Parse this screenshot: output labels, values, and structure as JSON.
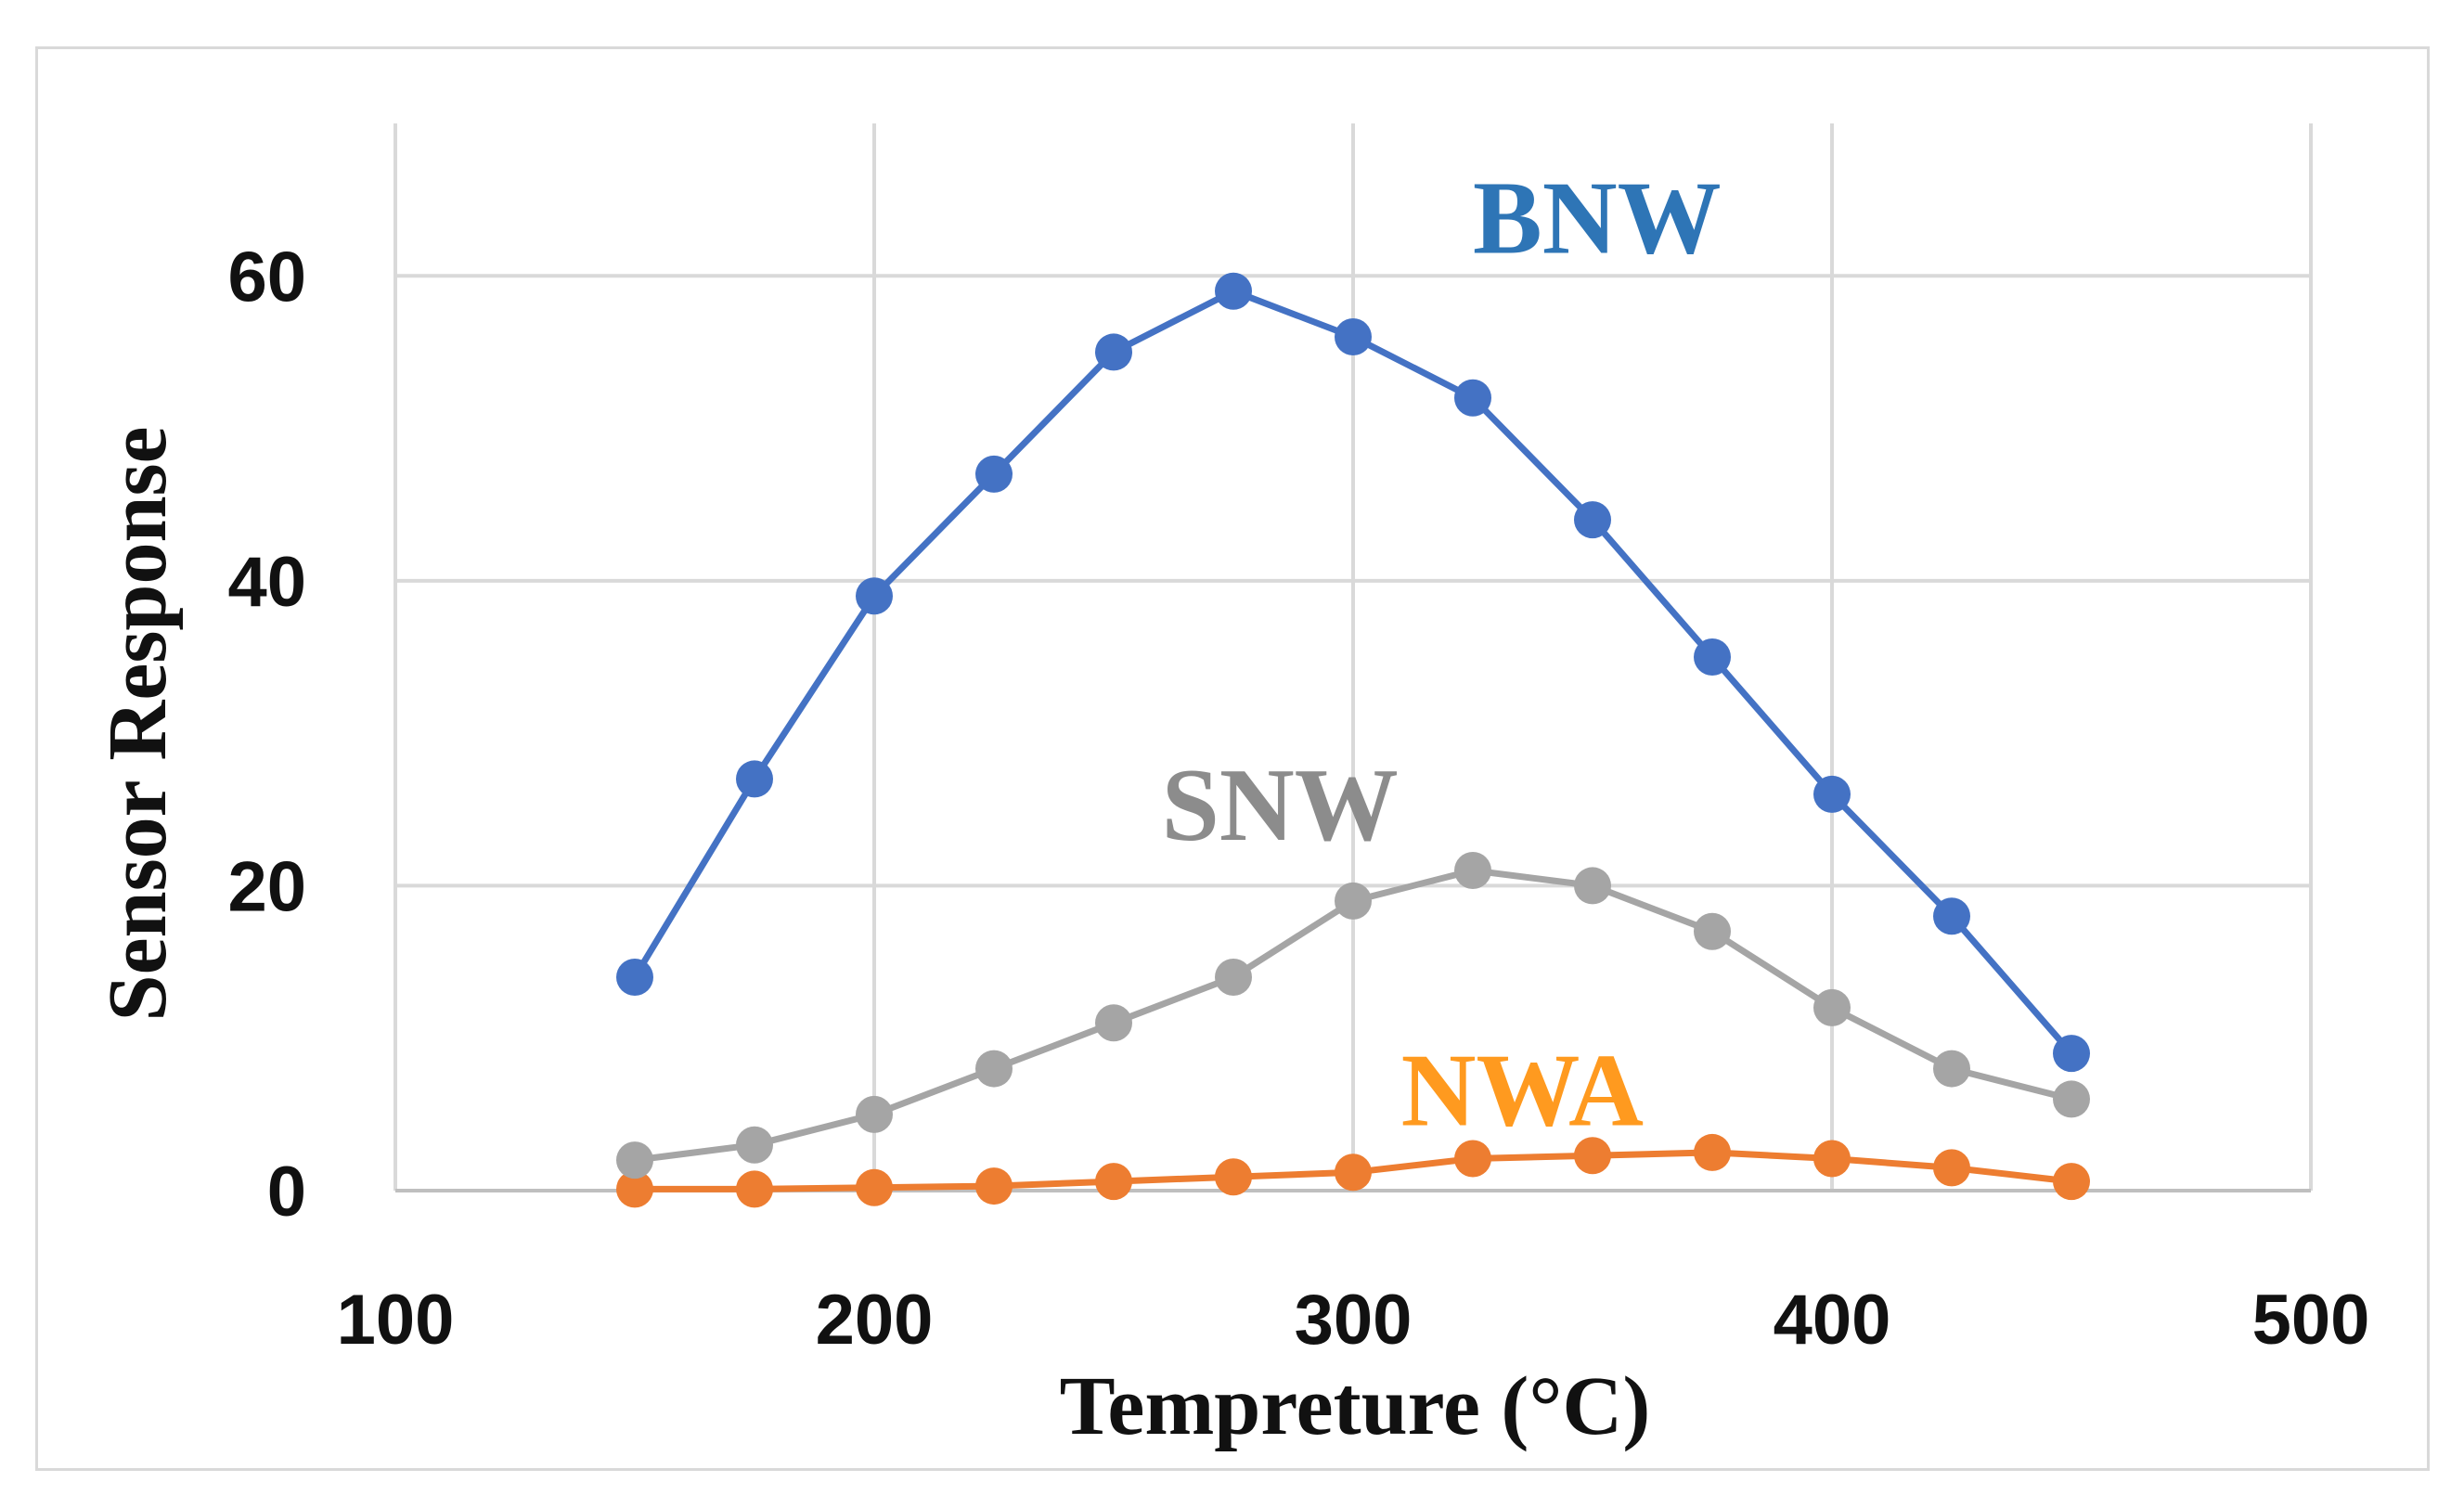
{
  "chart_data": {
    "type": "line",
    "title": "",
    "xlabel": "Tempreture (°C)",
    "ylabel": "Sensor Response",
    "xlim": [
      100,
      500
    ],
    "ylim": [
      0,
      70
    ],
    "xticks": [
      100,
      200,
      300,
      400,
      500
    ],
    "yticks": [
      0,
      20,
      40,
      60
    ],
    "grid": true,
    "x": [
      150,
      175,
      200,
      225,
      250,
      275,
      300,
      325,
      350,
      375,
      400,
      425,
      450
    ],
    "series": [
      {
        "name": "BNW",
        "color": "#4472c4",
        "label_color": "#2e75b6",
        "label_at": [
          325,
          61.5
        ],
        "values": [
          14,
          27,
          39,
          47,
          55,
          59,
          56,
          52,
          44,
          35,
          26,
          18,
          9
        ]
      },
      {
        "name": "SNW",
        "color": "#a5a5a5",
        "label_color": "#8c8c8c",
        "label_at": [
          260,
          23
        ],
        "values": [
          2,
          3,
          5,
          8,
          11,
          14,
          19,
          21,
          20,
          17,
          12,
          8,
          6
        ]
      },
      {
        "name": "NWA",
        "color": "#ed7d31",
        "label_color": "#ff9a1f",
        "label_at": [
          310,
          4.3
        ],
        "values": [
          0.1,
          0.1,
          0.2,
          0.3,
          0.6,
          0.9,
          1.2,
          2.1,
          2.3,
          2.5,
          2.1,
          1.5,
          0.6
        ]
      }
    ]
  }
}
